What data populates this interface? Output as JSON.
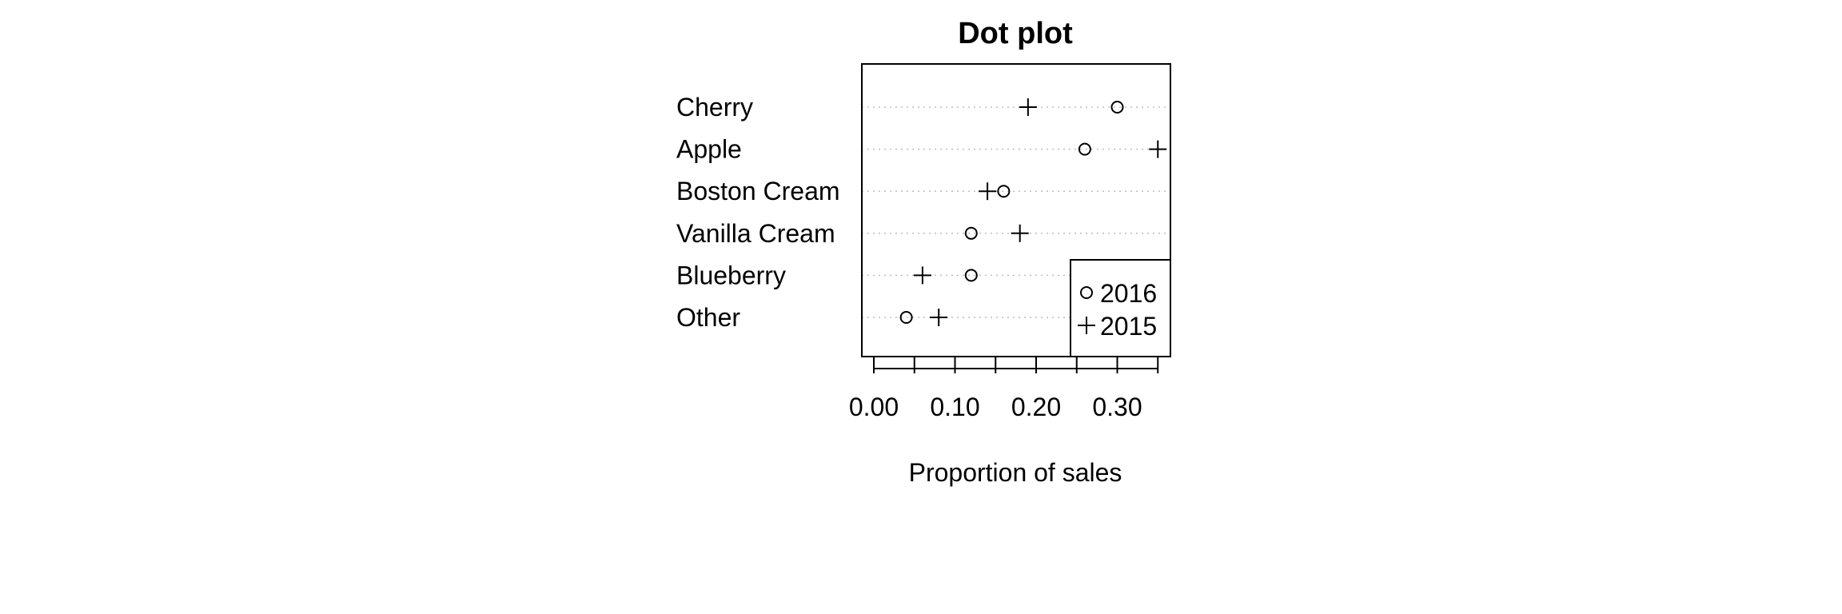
{
  "chart_data": {
    "type": "scatter",
    "title": "Dot plot",
    "xlabel": "Proportion of sales",
    "ylabel": "",
    "xlim": [
      0.0,
      0.35
    ],
    "x_ticks": [
      0.0,
      0.1,
      0.2,
      0.3
    ],
    "x_tick_labels": [
      "0.00",
      "0.10",
      "0.20",
      "0.30"
    ],
    "categories": [
      "Cherry",
      "Apple",
      "Boston Cream",
      "Vanilla Cream",
      "Blueberry",
      "Other"
    ],
    "series": [
      {
        "name": "2016",
        "marker": "circle",
        "values": [
          0.3,
          0.26,
          0.16,
          0.12,
          0.12,
          0.04
        ]
      },
      {
        "name": "2015",
        "marker": "plus",
        "values": [
          0.19,
          0.35,
          0.14,
          0.18,
          0.06,
          0.08
        ]
      }
    ],
    "grid": "dotted horizontal lines per category",
    "legend_position": "bottom-right",
    "colors": {
      "marks": "#000000",
      "grid": "#bebebe",
      "background": "#ffffff"
    }
  }
}
